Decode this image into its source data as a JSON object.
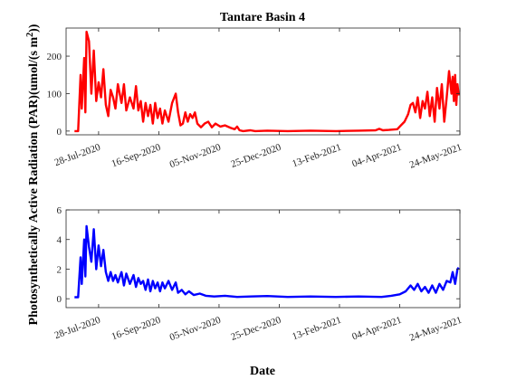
{
  "chart_data": [
    {
      "type": "line",
      "title": "Tantare Basin 4",
      "ylim": [
        -10,
        275
      ],
      "yticks": [
        0,
        100,
        200
      ],
      "xlim": [
        "2020-07-01",
        "2021-05-24"
      ],
      "xticks": [
        "28-Jul-2020",
        "16-Sep-2020",
        "05-Nov-2020",
        "25-Dec-2020",
        "13-Feb-2021",
        "04-Apr-2021",
        "24-May-2021"
      ],
      "grid": false,
      "series": [
        {
          "color": "#ff0000",
          "points": [
            [
              "2020-07-08",
              0
            ],
            [
              "2020-07-11",
              0
            ],
            [
              "2020-07-13",
              150
            ],
            [
              "2020-07-14",
              60
            ],
            [
              "2020-07-16",
              195
            ],
            [
              "2020-07-17",
              50
            ],
            [
              "2020-07-18",
              265
            ],
            [
              "2020-07-20",
              240
            ],
            [
              "2020-07-22",
              100
            ],
            [
              "2020-07-24",
              215
            ],
            [
              "2020-07-26",
              80
            ],
            [
              "2020-07-28",
              130
            ],
            [
              "2020-07-30",
              90
            ],
            [
              "2020-08-01",
              165
            ],
            [
              "2020-08-03",
              70
            ],
            [
              "2020-08-05",
              40
            ],
            [
              "2020-08-07",
              110
            ],
            [
              "2020-08-09",
              90
            ],
            [
              "2020-08-11",
              60
            ],
            [
              "2020-08-13",
              125
            ],
            [
              "2020-08-16",
              75
            ],
            [
              "2020-08-18",
              125
            ],
            [
              "2020-08-20",
              55
            ],
            [
              "2020-08-23",
              90
            ],
            [
              "2020-08-26",
              60
            ],
            [
              "2020-08-28",
              120
            ],
            [
              "2020-08-30",
              55
            ],
            [
              "2020-09-01",
              80
            ],
            [
              "2020-09-03",
              25
            ],
            [
              "2020-09-05",
              75
            ],
            [
              "2020-09-07",
              40
            ],
            [
              "2020-09-09",
              70
            ],
            [
              "2020-09-11",
              20
            ],
            [
              "2020-09-13",
              75
            ],
            [
              "2020-09-15",
              35
            ],
            [
              "2020-09-17",
              60
            ],
            [
              "2020-09-19",
              20
            ],
            [
              "2020-09-21",
              55
            ],
            [
              "2020-09-24",
              25
            ],
            [
              "2020-09-27",
              75
            ],
            [
              "2020-09-30",
              100
            ],
            [
              "2020-10-02",
              50
            ],
            [
              "2020-10-04",
              15
            ],
            [
              "2020-10-06",
              20
            ],
            [
              "2020-10-08",
              50
            ],
            [
              "2020-10-10",
              25
            ],
            [
              "2020-10-12",
              45
            ],
            [
              "2020-10-14",
              35
            ],
            [
              "2020-10-16",
              50
            ],
            [
              "2020-10-18",
              20
            ],
            [
              "2020-10-21",
              10
            ],
            [
              "2020-10-24",
              20
            ],
            [
              "2020-10-27",
              25
            ],
            [
              "2020-10-30",
              10
            ],
            [
              "2020-11-02",
              20
            ],
            [
              "2020-11-06",
              12
            ],
            [
              "2020-11-10",
              15
            ],
            [
              "2020-11-15",
              8
            ],
            [
              "2020-11-18",
              5
            ],
            [
              "2020-11-20",
              12
            ],
            [
              "2020-11-22",
              2
            ],
            [
              "2020-11-25",
              0
            ],
            [
              "2020-12-01",
              2
            ],
            [
              "2020-12-05",
              0
            ],
            [
              "2020-12-15",
              1
            ],
            [
              "2021-01-01",
              0
            ],
            [
              "2021-01-20",
              1
            ],
            [
              "2021-02-10",
              0
            ],
            [
              "2021-03-01",
              1
            ],
            [
              "2021-03-15",
              2
            ],
            [
              "2021-03-18",
              6
            ],
            [
              "2021-03-21",
              2
            ],
            [
              "2021-03-26",
              3
            ],
            [
              "2021-04-02",
              5
            ],
            [
              "2021-04-05",
              15
            ],
            [
              "2021-04-08",
              25
            ],
            [
              "2021-04-11",
              45
            ],
            [
              "2021-04-13",
              70
            ],
            [
              "2021-04-15",
              75
            ],
            [
              "2021-04-17",
              50
            ],
            [
              "2021-04-19",
              90
            ],
            [
              "2021-04-21",
              35
            ],
            [
              "2021-04-23",
              80
            ],
            [
              "2021-04-25",
              60
            ],
            [
              "2021-04-27",
              105
            ],
            [
              "2021-04-29",
              40
            ],
            [
              "2021-05-01",
              90
            ],
            [
              "2021-05-03",
              25
            ],
            [
              "2021-05-05",
              115
            ],
            [
              "2021-05-07",
              60
            ],
            [
              "2021-05-09",
              125
            ],
            [
              "2021-05-11",
              25
            ],
            [
              "2021-05-13",
              90
            ],
            [
              "2021-05-15",
              160
            ],
            [
              "2021-05-17",
              100
            ],
            [
              "2021-05-18",
              145
            ],
            [
              "2021-05-19",
              80
            ],
            [
              "2021-05-20",
              150
            ],
            [
              "2021-05-21",
              70
            ],
            [
              "2021-05-22",
              125
            ],
            [
              "2021-05-23",
              95
            ]
          ]
        }
      ]
    },
    {
      "type": "line",
      "ylim": [
        -0.6,
        6
      ],
      "yticks": [
        0,
        2,
        4,
        6
      ],
      "xlim": [
        "2020-07-01",
        "2021-05-24"
      ],
      "xticks": [
        "28-Jul-2020",
        "16-Sep-2020",
        "05-Nov-2020",
        "25-Dec-2020",
        "13-Feb-2021",
        "04-Apr-2021",
        "24-May-2021"
      ],
      "grid": false,
      "series": [
        {
          "color": "#0000ff",
          "points": [
            [
              "2020-07-08",
              0.1
            ],
            [
              "2020-07-11",
              0.1
            ],
            [
              "2020-07-13",
              2.8
            ],
            [
              "2020-07-14",
              1.0
            ],
            [
              "2020-07-16",
              4.0
            ],
            [
              "2020-07-17",
              1.5
            ],
            [
              "2020-07-18",
              4.9
            ],
            [
              "2020-07-20",
              3.5
            ],
            [
              "2020-07-22",
              2.5
            ],
            [
              "2020-07-24",
              4.7
            ],
            [
              "2020-07-26",
              2.0
            ],
            [
              "2020-07-28",
              3.6
            ],
            [
              "2020-07-30",
              2.2
            ],
            [
              "2020-08-01",
              3.3
            ],
            [
              "2020-08-03",
              1.8
            ],
            [
              "2020-08-05",
              1.2
            ],
            [
              "2020-08-07",
              1.8
            ],
            [
              "2020-08-09",
              1.2
            ],
            [
              "2020-08-11",
              1.6
            ],
            [
              "2020-08-13",
              1.1
            ],
            [
              "2020-08-16",
              1.8
            ],
            [
              "2020-08-18",
              0.9
            ],
            [
              "2020-08-20",
              1.7
            ],
            [
              "2020-08-23",
              1.0
            ],
            [
              "2020-08-26",
              1.6
            ],
            [
              "2020-08-28",
              0.8
            ],
            [
              "2020-08-30",
              1.4
            ],
            [
              "2020-09-01",
              1.0
            ],
            [
              "2020-09-03",
              1.2
            ],
            [
              "2020-09-05",
              0.6
            ],
            [
              "2020-09-07",
              1.3
            ],
            [
              "2020-09-09",
              0.5
            ],
            [
              "2020-09-11",
              1.2
            ],
            [
              "2020-09-13",
              0.7
            ],
            [
              "2020-09-15",
              1.1
            ],
            [
              "2020-09-17",
              0.5
            ],
            [
              "2020-09-19",
              1.1
            ],
            [
              "2020-09-21",
              0.7
            ],
            [
              "2020-09-24",
              1.2
            ],
            [
              "2020-09-27",
              0.6
            ],
            [
              "2020-09-30",
              1.1
            ],
            [
              "2020-10-02",
              0.4
            ],
            [
              "2020-10-05",
              0.6
            ],
            [
              "2020-10-08",
              0.3
            ],
            [
              "2020-10-11",
              0.5
            ],
            [
              "2020-10-15",
              0.25
            ],
            [
              "2020-10-20",
              0.35
            ],
            [
              "2020-10-25",
              0.2
            ],
            [
              "2020-11-01",
              0.15
            ],
            [
              "2020-11-10",
              0.2
            ],
            [
              "2020-11-20",
              0.12
            ],
            [
              "2020-12-01",
              0.15
            ],
            [
              "2020-12-15",
              0.18
            ],
            [
              "2021-01-01",
              0.12
            ],
            [
              "2021-01-20",
              0.15
            ],
            [
              "2021-02-10",
              0.12
            ],
            [
              "2021-03-01",
              0.15
            ],
            [
              "2021-03-20",
              0.12
            ],
            [
              "2021-03-28",
              0.2
            ],
            [
              "2021-04-04",
              0.3
            ],
            [
              "2021-04-09",
              0.5
            ],
            [
              "2021-04-13",
              0.9
            ],
            [
              "2021-04-16",
              0.6
            ],
            [
              "2021-04-19",
              1.0
            ],
            [
              "2021-04-22",
              0.5
            ],
            [
              "2021-04-25",
              0.8
            ],
            [
              "2021-04-28",
              0.4
            ],
            [
              "2021-05-01",
              0.9
            ],
            [
              "2021-05-04",
              0.4
            ],
            [
              "2021-05-07",
              1.0
            ],
            [
              "2021-05-10",
              0.6
            ],
            [
              "2021-05-13",
              1.2
            ],
            [
              "2021-05-16",
              1.1
            ],
            [
              "2021-05-18",
              1.8
            ],
            [
              "2021-05-20",
              1.0
            ],
            [
              "2021-05-22",
              2.0
            ],
            [
              "2021-05-23",
              2.1
            ]
          ]
        }
      ]
    }
  ],
  "shared": {
    "ylabel": "Photosynthetically Active Radiation (PAR)(umol/(s m^2))",
    "xlabel": "Date"
  }
}
